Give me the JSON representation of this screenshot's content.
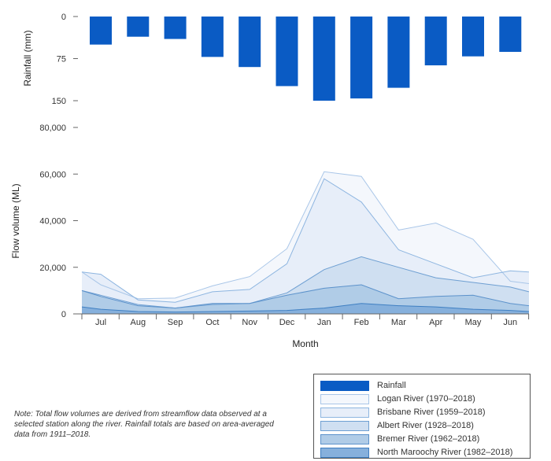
{
  "chart_data": [
    {
      "type": "bar",
      "title": "",
      "ylabel": "Rainfall (mm)",
      "ylim": [
        0,
        150
      ],
      "inverted": true,
      "yticks": [
        "0",
        "75",
        "150"
      ],
      "categories": [
        "Jul",
        "Aug",
        "Sep",
        "Oct",
        "Nov",
        "Dec",
        "Jan",
        "Feb",
        "Mar",
        "Apr",
        "May",
        "Jun"
      ],
      "values": [
        50,
        36,
        40,
        72,
        90,
        124,
        150,
        146,
        127,
        87,
        71,
        63
      ],
      "color": "#0a5bc4"
    },
    {
      "type": "area",
      "xlabel": "Month",
      "ylabel": "Flow volume (ML)",
      "ylim": [
        0,
        80000
      ],
      "yticks": [
        "0",
        "20,000",
        "40,000",
        "60,000",
        "80,000"
      ],
      "x_points": [
        "Jul-start",
        "Jul",
        "Aug",
        "Sep",
        "Oct",
        "Nov",
        "Dec",
        "Jan",
        "Feb",
        "Mar",
        "Apr",
        "May",
        "Jun",
        "Jun-end"
      ],
      "series": [
        {
          "name": "Logan River (1970–2018)",
          "values": [
            18000,
            12500,
            6500,
            6800,
            12000,
            16000,
            28000,
            61000,
            59000,
            36000,
            39000,
            32000,
            14000,
            13000
          ],
          "fill": "#f4f7fc",
          "stroke": "#a9c6e8"
        },
        {
          "name": "Brisbane River (1959–2018)",
          "values": [
            18000,
            17000,
            6000,
            5000,
            9500,
            10500,
            21500,
            58000,
            48000,
            27500,
            21500,
            15500,
            18500,
            18000
          ],
          "fill": "#e7eef9",
          "stroke": "#8db5e0"
        },
        {
          "name": "Albert River (1928–2018)",
          "values": [
            10000,
            8000,
            4000,
            2500,
            4000,
            4500,
            9000,
            19000,
            24500,
            20000,
            15500,
            13500,
            11500,
            9500
          ],
          "fill": "#cfdff1",
          "stroke": "#6e9fd2"
        },
        {
          "name": "Bremer River (1962–2018)",
          "values": [
            10000,
            7500,
            3500,
            2500,
            4500,
            4500,
            8000,
            11000,
            12500,
            6500,
            7500,
            8000,
            4500,
            3500
          ],
          "fill": "#b0cce7",
          "stroke": "#5c92cb"
        },
        {
          "name": "North Maroochy River (1982–2018)",
          "values": [
            3000,
            2000,
            1000,
            800,
            1000,
            1200,
            1500,
            2500,
            4500,
            3500,
            3000,
            2000,
            1500,
            1000
          ],
          "fill": "#86b0dc",
          "stroke": "#3f7fc2"
        }
      ]
    }
  ],
  "legend": {
    "items": [
      {
        "label": "Rainfall",
        "color": "#0a5bc4",
        "border": "#0a5bc4"
      },
      {
        "label": "Logan River (1970–2018)",
        "color": "#f4f7fc",
        "border": "#a9c6e8"
      },
      {
        "label": "Brisbane River (1959–2018)",
        "color": "#e7eef9",
        "border": "#8db5e0"
      },
      {
        "label": "Albert River (1928–2018)",
        "color": "#cfdff1",
        "border": "#6e9fd2"
      },
      {
        "label": "Bremer River (1962–2018)",
        "color": "#b0cce7",
        "border": "#5c92cb"
      },
      {
        "label": "North Maroochy River (1982–2018)",
        "color": "#86b0dc",
        "border": "#3f7fc2"
      }
    ]
  },
  "note": {
    "text": "Note: Total flow volumes are derived from streamflow data observed at a selected station along the river. Rainfall totals are based on area-averaged data from 1911–2018."
  }
}
